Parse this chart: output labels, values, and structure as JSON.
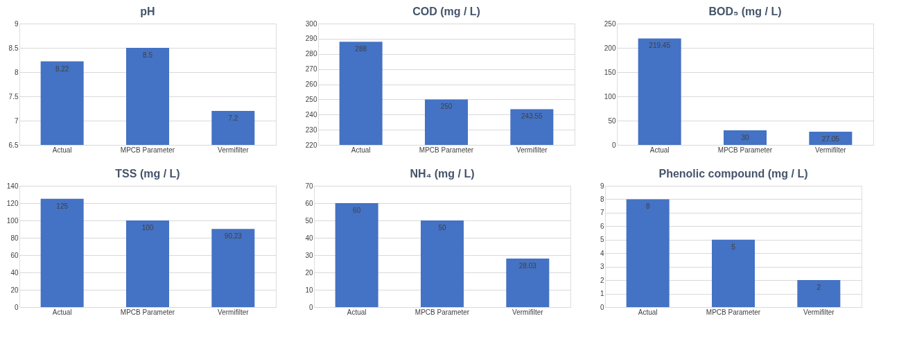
{
  "chart_data": [
    {
      "type": "bar",
      "title": "pH",
      "categories": [
        "Actual",
        "MPCB Parameter",
        "Vermifilter"
      ],
      "color": "#4472c4",
      "values": [
        8.22,
        8.5,
        7.2
      ],
      "ylim": [
        6.5,
        9
      ],
      "yticks": [
        6.5,
        7,
        7.5,
        8,
        8.5,
        9
      ],
      "grid": "y",
      "data_labels": true
    },
    {
      "type": "bar",
      "title": "COD (mg / L)",
      "categories": [
        "Actual",
        "MPCB Parameter",
        "Vermifilter"
      ],
      "color": "#4472c4",
      "values": [
        288,
        250,
        243.55
      ],
      "ylim": [
        220,
        300
      ],
      "yticks": [
        220,
        230,
        240,
        250,
        260,
        270,
        280,
        290,
        300
      ],
      "grid": "y",
      "data_labels": true
    },
    {
      "type": "bar",
      "title": "BOD₅ (mg / L)",
      "categories": [
        "Actual",
        "MPCB Parameter",
        "Vermifilter"
      ],
      "color": "#4472c4",
      "values": [
        219.45,
        30,
        27.05
      ],
      "ylim": [
        0,
        250
      ],
      "yticks": [
        0,
        50,
        100,
        150,
        200,
        250
      ],
      "grid": "y",
      "data_labels": true
    },
    {
      "type": "bar",
      "title": "TSS (mg / L)",
      "categories": [
        "Actual",
        "MPCB Parameter",
        "Vermifilter"
      ],
      "color": "#4472c4",
      "values": [
        125,
        100,
        90.23
      ],
      "ylim": [
        0,
        140
      ],
      "yticks": [
        0,
        20,
        40,
        60,
        80,
        100,
        120,
        140
      ],
      "grid": "y",
      "data_labels": true
    },
    {
      "type": "bar",
      "title": "NH₄ (mg / L)",
      "categories": [
        "Actual",
        "MPCB Parameter",
        "Vermifilter"
      ],
      "color": "#4472c4",
      "values": [
        60,
        50,
        28.03
      ],
      "ylim": [
        0,
        70
      ],
      "yticks": [
        0,
        10,
        20,
        30,
        40,
        50,
        60,
        70
      ],
      "grid": "y",
      "data_labels": true
    },
    {
      "type": "bar",
      "title": "Phenolic compound (mg / L)",
      "categories": [
        "Actual",
        "MPCB Parameter",
        "Vermifilter"
      ],
      "color": "#4472c4",
      "values": [
        8,
        5,
        2
      ],
      "ylim": [
        0,
        9
      ],
      "yticks": [
        0,
        1,
        2,
        3,
        4,
        5,
        6,
        7,
        8,
        9
      ],
      "grid": "y",
      "data_labels": true
    }
  ]
}
